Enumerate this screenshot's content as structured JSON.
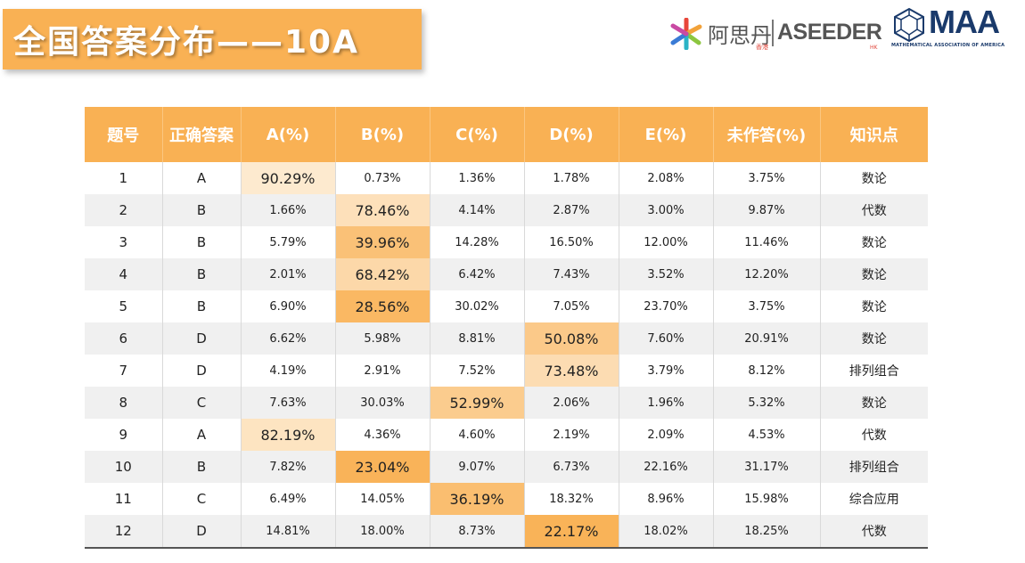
{
  "title": "全国答案分布——10A",
  "logos": {
    "aseeder_cn": "阿思丹",
    "aseeder_cn_sub": "香港",
    "aseeder_en": "ASEEDER",
    "aseeder_en_sub": "HK",
    "maa": "MAA",
    "maa_sub": "MATHEMATICAL ASSOCIATION OF AMERICA"
  },
  "colors": {
    "header": "#f9b154",
    "highlight_low": "#fef2e0",
    "highlight_high": "#f9b154"
  },
  "table": {
    "headers": [
      "题号",
      "正确答案",
      "A(%)",
      "B(%)",
      "C(%)",
      "D(%)",
      "E(%)",
      "未作答(%)",
      "知识点"
    ],
    "rows": [
      {
        "no": "1",
        "ans": "A",
        "a": "90.29%",
        "b": "0.73%",
        "c": "1.36%",
        "d": "1.78%",
        "e": "2.08%",
        "blank": "3.75%",
        "topic": "数论",
        "hl": "a",
        "rate": 0.9029
      },
      {
        "no": "2",
        "ans": "B",
        "a": "1.66%",
        "b": "78.46%",
        "c": "4.14%",
        "d": "2.87%",
        "e": "3.00%",
        "blank": "9.87%",
        "topic": "代数",
        "hl": "b",
        "rate": 0.7846
      },
      {
        "no": "3",
        "ans": "B",
        "a": "5.79%",
        "b": "39.96%",
        "c": "14.28%",
        "d": "16.50%",
        "e": "12.00%",
        "blank": "11.46%",
        "topic": "数论",
        "hl": "b",
        "rate": 0.3996
      },
      {
        "no": "4",
        "ans": "B",
        "a": "2.01%",
        "b": "68.42%",
        "c": "6.42%",
        "d": "7.43%",
        "e": "3.52%",
        "blank": "12.20%",
        "topic": "数论",
        "hl": "b",
        "rate": 0.6842
      },
      {
        "no": "5",
        "ans": "B",
        "a": "6.90%",
        "b": "28.56%",
        "c": "30.02%",
        "d": "7.05%",
        "e": "23.70%",
        "blank": "3.75%",
        "topic": "数论",
        "hl": "b",
        "rate": 0.2856
      },
      {
        "no": "6",
        "ans": "D",
        "a": "6.62%",
        "b": "5.98%",
        "c": "8.81%",
        "d": "50.08%",
        "e": "7.60%",
        "blank": "20.91%",
        "topic": "数论",
        "hl": "d",
        "rate": 0.5008
      },
      {
        "no": "7",
        "ans": "D",
        "a": "4.19%",
        "b": "2.91%",
        "c": "7.52%",
        "d": "73.48%",
        "e": "3.79%",
        "blank": "8.12%",
        "topic": "排列组合",
        "hl": "d",
        "rate": 0.7348
      },
      {
        "no": "8",
        "ans": "C",
        "a": "7.63%",
        "b": "30.03%",
        "c": "52.99%",
        "d": "2.06%",
        "e": "1.96%",
        "blank": "5.32%",
        "topic": "数论",
        "hl": "c",
        "rate": 0.5299
      },
      {
        "no": "9",
        "ans": "A",
        "a": "82.19%",
        "b": "4.36%",
        "c": "4.60%",
        "d": "2.19%",
        "e": "2.09%",
        "blank": "4.53%",
        "topic": "代数",
        "hl": "a",
        "rate": 0.8219
      },
      {
        "no": "10",
        "ans": "B",
        "a": "7.82%",
        "b": "23.04%",
        "c": "9.07%",
        "d": "6.73%",
        "e": "22.16%",
        "blank": "31.17%",
        "topic": "排列组合",
        "hl": "b",
        "rate": 0.2304
      },
      {
        "no": "11",
        "ans": "C",
        "a": "6.49%",
        "b": "14.05%",
        "c": "36.19%",
        "d": "18.32%",
        "e": "8.96%",
        "blank": "15.98%",
        "topic": "综合应用",
        "hl": "c",
        "rate": 0.3619
      },
      {
        "no": "12",
        "ans": "D",
        "a": "14.81%",
        "b": "18.00%",
        "c": "8.73%",
        "d": "22.17%",
        "e": "18.02%",
        "blank": "18.25%",
        "topic": "代数",
        "hl": "d",
        "rate": 0.2217
      }
    ]
  }
}
